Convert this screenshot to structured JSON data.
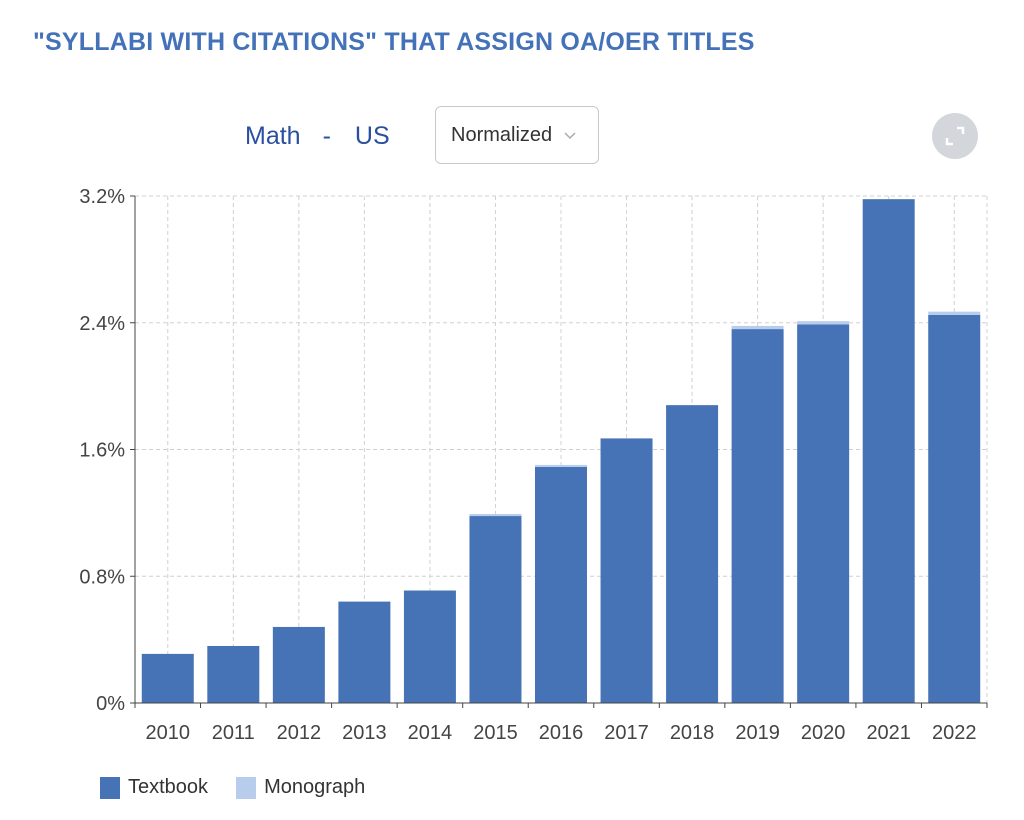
{
  "header": {
    "title": "\"SYLLABI WITH CITATIONS\" THAT ASSIGN OA/OER TITLES",
    "subject": "Math",
    "separator": "-",
    "region": "US"
  },
  "controls": {
    "view_select_value": "Normalized",
    "expand_icon": "expand-icon"
  },
  "colors": {
    "textbook": "#4673b6",
    "monograph": "#b8cceb",
    "title": "#4472b8",
    "subject": "#2b4fa0"
  },
  "chart_data": {
    "type": "bar",
    "stacked": true,
    "categories": [
      "2010",
      "2011",
      "2012",
      "2013",
      "2014",
      "2015",
      "2016",
      "2017",
      "2018",
      "2019",
      "2020",
      "2021",
      "2022"
    ],
    "series": [
      {
        "name": "Textbook",
        "values": [
          0.31,
          0.36,
          0.48,
          0.64,
          0.71,
          1.18,
          1.49,
          1.67,
          1.88,
          2.36,
          2.39,
          3.18,
          2.45
        ]
      },
      {
        "name": "Monograph",
        "values": [
          0.0,
          0.0,
          0.0,
          0.0,
          0.0,
          0.01,
          0.01,
          0.0,
          0.0,
          0.02,
          0.02,
          0.0,
          0.02
        ]
      }
    ],
    "yticks": [
      "0%",
      "0.8%",
      "1.6%",
      "2.4%",
      "3.2%"
    ],
    "ylim": [
      0,
      3.2
    ],
    "grid": true,
    "legend_position": "bottom-left"
  }
}
